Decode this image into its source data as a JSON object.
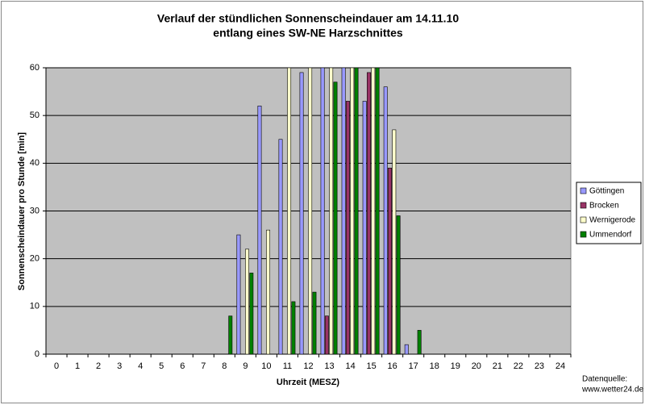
{
  "chart_data": {
    "type": "bar",
    "title": "Verlauf der stündlichen Sonnenscheindauer am 14.11.10",
    "subtitle": "entlang eines SW-NE Harzschnittes",
    "x_label": "Uhrzeit (MESZ)",
    "y_label": "Sonnenscheindauer pro Stunde [min]",
    "source_label": "Datenquelle:",
    "source": "www.wetter24.de",
    "categories": [
      "0",
      "1",
      "2",
      "3",
      "4",
      "5",
      "6",
      "7",
      "8",
      "9",
      "10",
      "11",
      "12",
      "13",
      "14",
      "15",
      "16",
      "17",
      "18",
      "19",
      "20",
      "21",
      "22",
      "23",
      "24"
    ],
    "series": [
      {
        "name": "Göttingen",
        "color": "#9999ff",
        "values": [
          0,
          0,
          0,
          0,
          0,
          0,
          0,
          0,
          0,
          25,
          52,
          45,
          59,
          60,
          60,
          53,
          56,
          2,
          0,
          0,
          0,
          0,
          0,
          0,
          0
        ]
      },
      {
        "name": "Brocken",
        "color": "#993366",
        "values": [
          0,
          0,
          0,
          0,
          0,
          0,
          0,
          0,
          0,
          0,
          0,
          0,
          0,
          8,
          53,
          59,
          39,
          0,
          0,
          0,
          0,
          0,
          0,
          0,
          0
        ]
      },
      {
        "name": "Wernigerode",
        "color": "#ffffcc",
        "values": [
          0,
          0,
          0,
          0,
          0,
          0,
          0,
          0,
          0,
          22,
          26,
          60,
          60,
          60,
          60,
          60,
          47,
          0,
          0,
          0,
          0,
          0,
          0,
          0,
          0
        ]
      },
      {
        "name": "Ummendorf",
        "color": "#008000",
        "values": [
          0,
          0,
          0,
          0,
          0,
          0,
          0,
          0,
          8,
          17,
          0,
          11,
          13,
          57,
          60,
          60,
          29,
          5,
          0,
          0,
          0,
          0,
          0,
          0,
          0
        ]
      }
    ],
    "ylim": [
      0,
      60
    ],
    "yticks": [
      0,
      10,
      20,
      30,
      40,
      50,
      60
    ],
    "grid": true,
    "legend": "right"
  }
}
